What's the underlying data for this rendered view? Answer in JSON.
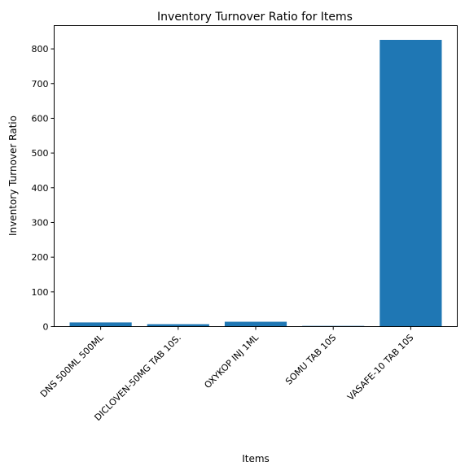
{
  "chart_data": {
    "type": "bar",
    "title": "Inventory Turnover Ratio for Items",
    "xlabel": "Items",
    "ylabel": "Inventory Turnover Ratio",
    "categories": [
      "DNS 500ML 500ML",
      "DICLOVEN-50MG TAB 10S.",
      "OXYKOP INJ 1ML",
      "SOMU TAB 10S",
      "VASAFE-10 TAB 10S"
    ],
    "values": [
      12,
      7,
      14,
      2,
      826
    ],
    "ylim": [
      0,
      867
    ],
    "yticks": [
      0,
      100,
      200,
      300,
      400,
      500,
      600,
      700,
      800
    ],
    "grid": false,
    "bar_color": "#1f77b4"
  }
}
